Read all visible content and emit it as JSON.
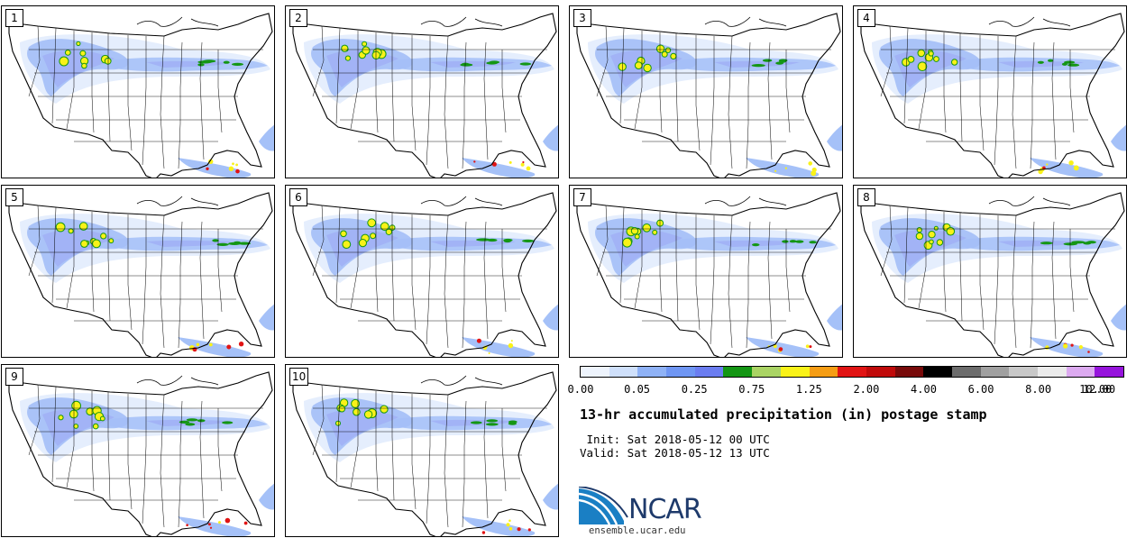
{
  "members": [
    {
      "label": "1"
    },
    {
      "label": "2"
    },
    {
      "label": "3"
    },
    {
      "label": "4"
    },
    {
      "label": "5"
    },
    {
      "label": "6"
    },
    {
      "label": "7"
    },
    {
      "label": "8"
    },
    {
      "label": "9"
    },
    {
      "label": "10"
    }
  ],
  "colorbar": {
    "colors": [
      "#eef4fd",
      "#cfe0fb",
      "#8fb2f6",
      "#6f96f3",
      "#6b7df0",
      "#149614",
      "#aad464",
      "#f9f218",
      "#f59d14",
      "#e11414",
      "#c00a0a",
      "#780a0a",
      "#000000",
      "#6c6c6c",
      "#a0a0a0",
      "#c8c8c8",
      "#ebebeb",
      "#dcaaf0",
      "#9614dc"
    ],
    "tick_labels": [
      "0.00",
      "0.05",
      "0.25",
      "0.75",
      "1.25",
      "2.00",
      "4.00",
      "6.00",
      "8.00",
      "10.00",
      "12.00"
    ]
  },
  "title": "13-hr accumulated precipitation (in) postage stamp",
  "init_line": " Init: Sat 2018-05-12 00 UTC",
  "valid_line": "Valid: Sat 2018-05-12 13 UTC",
  "logo": {
    "text": "NCAR",
    "url": "ensemble.ucar.edu"
  }
}
